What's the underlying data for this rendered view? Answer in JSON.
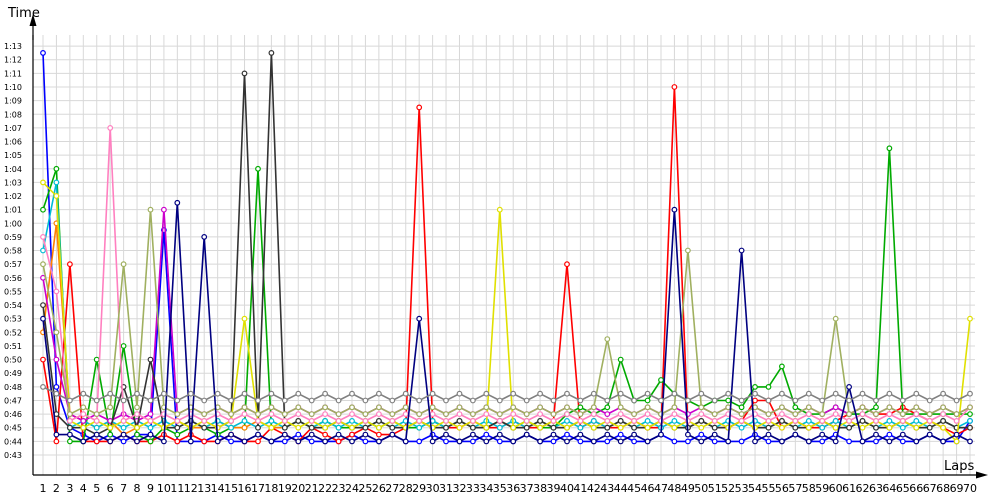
{
  "chart_data": {
    "type": "line",
    "ylabel": "Time",
    "xlabel": "Laps",
    "y_ticks": [
      "0:43",
      "0:44",
      "0:45",
      "0:46",
      "0:47",
      "0:48",
      "0:49",
      "0:50",
      "0:51",
      "0:52",
      "0:53",
      "0:54",
      "0:55",
      "0:56",
      "0:57",
      "0:58",
      "0:59",
      "1:00",
      "1:01",
      "1:02",
      "1:03",
      "1:04",
      "1:05",
      "1:06",
      "1:07",
      "1:08",
      "1:09",
      "1:10",
      "1:11",
      "1:12",
      "1:13"
    ],
    "y_tick_seconds": [
      43,
      44,
      45,
      46,
      47,
      48,
      49,
      50,
      51,
      52,
      53,
      54,
      55,
      56,
      57,
      58,
      59,
      60,
      61,
      62,
      63,
      64,
      65,
      66,
      67,
      68,
      69,
      70,
      71,
      72,
      73
    ],
    "x_ticks": [
      "1",
      "2",
      "3",
      "4",
      "5",
      "6",
      "7",
      "8",
      "9",
      "10",
      "11",
      "12",
      "13",
      "14",
      "15",
      "16",
      "17",
      "18",
      "19",
      "20",
      "21",
      "22",
      "23",
      "24",
      "25",
      "26",
      "27",
      "28",
      "29",
      "30",
      "31",
      "32",
      "33",
      "34",
      "35",
      "36",
      "37",
      "38",
      "39",
      "40",
      "41",
      "42",
      "43",
      "44",
      "45",
      "46",
      "47",
      "48",
      "49",
      "50",
      "51",
      "52",
      "53",
      "54",
      "55",
      "56",
      "57",
      "58",
      "59",
      "60",
      "61",
      "62",
      "63",
      "64",
      "65",
      "66",
      "67",
      "68",
      "69",
      "70"
    ],
    "xlim": [
      1,
      70
    ],
    "ylim": [
      42.5,
      75
    ],
    "grid": true,
    "legend": "none",
    "series": [
      {
        "color": "#0000ff",
        "values": [
          72.5,
          48.0,
          45.0,
          44.5,
          44.0,
          44.5,
          44.0,
          44.5,
          44.5,
          59.5,
          44.0,
          44.0,
          44.0,
          44.5,
          44.0,
          44.0,
          44.5,
          44.0,
          44.0,
          44.5,
          44.0,
          44.0,
          44.0,
          44.5,
          44.0,
          44.0,
          44.5,
          44.0,
          44.0,
          44.5,
          44.0,
          44.0,
          44.0,
          44.5,
          44.0,
          44.0,
          44.5,
          44.0,
          44.0,
          44.5,
          44.0,
          44.0,
          44.0,
          44.5,
          44.0,
          44.0,
          44.5,
          44.0,
          44.0,
          44.5,
          44.0,
          44.0,
          44.0,
          44.5,
          44.0,
          44.0,
          44.5,
          44.0,
          44.0,
          44.5,
          44.0,
          44.0,
          44.0,
          44.5,
          44.0,
          44.0,
          44.5,
          44.0,
          44.0,
          45.5
        ]
      },
      {
        "color": "#ff0000",
        "values": [
          50.0,
          44.0,
          57.0,
          44.0,
          44.0,
          44.0,
          44.5,
          44.0,
          44.0,
          44.5,
          44.0,
          44.5,
          44.0,
          44.0,
          44.5,
          44.0,
          44.0,
          45.0,
          44.5,
          44.0,
          45.0,
          44.5,
          44.0,
          44.5,
          45.0,
          44.5,
          44.5,
          45.0,
          68.5,
          45.5,
          45.0,
          45.0,
          45.5,
          45.0,
          45.0,
          45.5,
          45.0,
          45.0,
          45.5,
          57.0,
          45.0,
          45.5,
          45.0,
          45.0,
          45.5,
          45.0,
          45.0,
          70.0,
          45.0,
          45.5,
          45.0,
          45.0,
          45.5,
          47.0,
          47.0,
          45.0,
          45.5,
          45.0,
          45.0,
          45.5,
          46.0,
          46.5,
          46.0,
          46.0,
          46.5,
          46.0,
          45.5,
          45.0,
          44.5,
          45.0
        ]
      },
      {
        "color": "#00aa00",
        "values": [
          61.0,
          64.0,
          44.0,
          44.0,
          50.0,
          44.5,
          51.0,
          44.5,
          44.0,
          45.0,
          44.5,
          45.0,
          45.0,
          44.5,
          45.0,
          45.0,
          64.0,
          45.0,
          45.0,
          45.5,
          45.0,
          45.5,
          45.0,
          45.0,
          45.5,
          45.0,
          45.5,
          45.0,
          45.0,
          45.5,
          45.0,
          45.5,
          45.0,
          45.0,
          45.5,
          45.0,
          45.5,
          45.0,
          45.0,
          46.0,
          46.5,
          46.0,
          46.5,
          50.0,
          47.0,
          47.0,
          48.5,
          47.5,
          47.0,
          46.5,
          47.0,
          47.0,
          46.5,
          48.0,
          48.0,
          49.5,
          46.5,
          46.0,
          46.0,
          46.5,
          46.0,
          46.0,
          46.5,
          65.5,
          46.0,
          46.0,
          46.0,
          46.0,
          46.0,
          46.0
        ]
      },
      {
        "color": "#ff8000",
        "values": [
          52.0,
          60.0,
          46.0,
          45.5,
          45.0,
          45.5,
          44.5,
          45.0,
          45.5,
          45.0,
          45.5,
          45.0,
          45.0,
          45.5,
          45.0,
          45.0,
          45.5,
          45.0,
          45.0,
          45.5,
          45.0,
          45.0,
          45.5,
          45.0,
          45.0,
          45.5,
          45.0,
          45.0,
          45.5,
          45.0,
          45.0,
          45.5,
          45.0,
          45.0,
          45.5,
          45.0,
          45.0,
          45.5,
          45.0,
          45.0,
          45.5,
          45.0,
          45.0,
          45.5,
          45.0,
          45.0,
          45.5,
          45.0,
          45.0,
          45.5,
          45.0,
          45.0,
          45.5,
          45.0,
          45.0,
          45.5,
          45.0,
          45.0,
          45.5,
          45.0,
          45.0,
          45.5,
          45.0,
          45.0,
          45.5,
          45.0,
          45.0,
          45.5,
          45.0,
          45.0
        ]
      },
      {
        "color": "#00bcd4",
        "values": [
          58.0,
          63.0,
          45.0,
          45.5,
          45.0,
          45.5,
          45.0,
          45.5,
          45.0,
          45.5,
          45.0,
          45.5,
          45.0,
          45.5,
          45.0,
          45.5,
          45.0,
          45.5,
          45.0,
          45.5,
          45.0,
          45.5,
          45.0,
          45.5,
          45.0,
          45.5,
          45.0,
          45.5,
          45.0,
          45.5,
          45.0,
          45.5,
          45.0,
          45.5,
          45.0,
          45.5,
          45.0,
          45.5,
          45.0,
          45.5,
          45.0,
          45.5,
          45.0,
          45.5,
          45.0,
          45.5,
          45.0,
          45.5,
          45.0,
          45.5,
          45.0,
          45.5,
          45.0,
          45.5,
          45.0,
          45.5,
          45.0,
          45.5,
          45.0,
          45.5,
          45.0,
          45.5,
          45.0,
          45.5,
          45.0,
          45.5,
          45.0,
          45.5,
          45.0,
          45.5
        ]
      },
      {
        "color": "#cc00cc",
        "values": [
          56.0,
          50.0,
          46.0,
          45.5,
          46.0,
          45.5,
          46.0,
          45.5,
          46.0,
          61.0,
          46.0,
          46.5,
          46.0,
          46.5,
          46.0,
          46.5,
          46.0,
          46.5,
          46.0,
          46.5,
          46.0,
          46.5,
          46.0,
          46.5,
          46.0,
          46.5,
          46.0,
          46.5,
          46.0,
          46.5,
          46.0,
          46.5,
          46.0,
          46.5,
          46.0,
          46.5,
          46.0,
          46.5,
          46.0,
          46.5,
          46.0,
          46.5,
          46.0,
          46.5,
          46.0,
          46.5,
          46.0,
          46.5,
          46.0,
          46.5,
          46.0,
          46.5,
          46.0,
          46.5,
          46.0,
          46.5,
          46.0,
          46.5,
          46.0,
          46.5,
          46.0,
          46.5,
          46.0,
          46.5,
          46.0,
          46.5,
          46.0,
          46.5,
          46.0,
          46.5
        ]
      },
      {
        "color": "#333333",
        "values": [
          54.0,
          46.0,
          45.0,
          45.0,
          44.5,
          45.0,
          48.0,
          45.0,
          50.0,
          45.0,
          45.0,
          45.5,
          45.0,
          45.0,
          45.5,
          71.0,
          45.0,
          72.5,
          45.0,
          45.5,
          45.0,
          45.0,
          45.5,
          45.0,
          45.0,
          45.5,
          45.0,
          45.0,
          45.5,
          45.0,
          45.0,
          45.5,
          45.0,
          45.0,
          45.5,
          45.0,
          45.0,
          45.5,
          45.0,
          45.0,
          45.5,
          45.0,
          45.0,
          45.5,
          45.0,
          45.0,
          45.5,
          45.0,
          45.0,
          45.5,
          45.0,
          45.0,
          45.5,
          45.0,
          45.0,
          45.5,
          45.0,
          45.0,
          45.5,
          45.0,
          45.0,
          45.5,
          45.0,
          45.0,
          45.5,
          45.0,
          45.0,
          45.5,
          45.0,
          45.0
        ]
      },
      {
        "color": "#e0e000",
        "values": [
          63.0,
          62.0,
          45.5,
          45.0,
          45.5,
          45.0,
          45.5,
          45.0,
          45.5,
          45.0,
          45.5,
          45.0,
          45.5,
          45.0,
          45.5,
          53.0,
          45.5,
          45.0,
          45.5,
          45.0,
          45.5,
          45.0,
          45.5,
          45.0,
          45.5,
          45.0,
          45.5,
          45.0,
          45.5,
          45.0,
          45.5,
          45.0,
          45.5,
          45.0,
          61.0,
          45.0,
          45.5,
          45.0,
          45.5,
          45.0,
          45.5,
          45.0,
          45.5,
          45.0,
          45.5,
          45.0,
          45.5,
          45.0,
          45.5,
          45.0,
          45.5,
          45.0,
          45.5,
          45.0,
          45.5,
          45.0,
          45.5,
          45.0,
          45.5,
          45.0,
          45.5,
          45.0,
          45.5,
          45.0,
          45.5,
          45.0,
          45.5,
          45.0,
          44.0,
          53.0
        ]
      },
      {
        "color": "#ff80c0",
        "values": [
          59.0,
          55.0,
          45.5,
          46.0,
          45.5,
          67.0,
          45.5,
          46.0,
          45.5,
          46.0,
          45.5,
          46.0,
          45.5,
          46.0,
          45.5,
          46.0,
          45.5,
          46.0,
          45.5,
          46.0,
          45.5,
          46.0,
          45.5,
          46.0,
          45.5,
          46.0,
          45.5,
          46.0,
          45.5,
          46.0,
          45.5,
          46.0,
          45.5,
          46.0,
          45.5,
          46.0,
          45.5,
          46.0,
          45.5,
          46.0,
          45.5,
          46.0,
          45.5,
          46.0,
          45.5,
          46.0,
          45.5,
          46.0,
          45.5,
          46.0,
          45.5,
          46.0,
          45.5,
          46.0,
          45.5,
          46.0,
          45.5,
          46.0,
          45.5,
          46.0,
          45.5,
          46.0,
          45.5,
          46.0,
          45.5,
          46.0,
          45.5,
          46.0,
          45.5,
          46.5
        ]
      },
      {
        "color": "#a0b060",
        "values": [
          57.0,
          52.0,
          46.0,
          46.5,
          46.0,
          46.5,
          57.0,
          46.5,
          61.0,
          46.5,
          46.0,
          46.5,
          46.0,
          46.5,
          46.0,
          46.5,
          46.0,
          46.5,
          46.0,
          46.5,
          46.0,
          46.5,
          46.0,
          46.5,
          46.0,
          46.5,
          46.0,
          46.5,
          46.0,
          46.5,
          46.0,
          46.5,
          46.0,
          46.5,
          46.0,
          46.5,
          46.0,
          46.5,
          46.0,
          46.5,
          46.0,
          46.5,
          51.5,
          46.5,
          46.0,
          46.5,
          46.0,
          46.5,
          58.0,
          46.5,
          46.0,
          46.5,
          46.0,
          46.5,
          46.0,
          46.5,
          46.0,
          46.5,
          46.0,
          53.0,
          46.0,
          46.5,
          46.0,
          46.5,
          46.0,
          46.5,
          46.0,
          46.5,
          46.0,
          46.5
        ]
      },
      {
        "color": "#000080",
        "values": [
          53.0,
          44.5,
          44.5,
          44.0,
          44.5,
          44.0,
          44.5,
          44.0,
          44.5,
          44.0,
          61.5,
          44.0,
          59.0,
          44.0,
          44.5,
          44.0,
          44.5,
          44.0,
          44.5,
          44.0,
          44.5,
          44.0,
          44.5,
          44.0,
          44.5,
          44.0,
          44.5,
          44.0,
          53.0,
          44.0,
          44.5,
          44.0,
          44.5,
          44.0,
          44.5,
          44.0,
          44.5,
          44.0,
          44.5,
          44.0,
          44.5,
          44.0,
          44.5,
          44.0,
          44.5,
          44.0,
          44.5,
          61.0,
          44.5,
          44.0,
          44.5,
          44.0,
          58.0,
          44.0,
          44.5,
          44.0,
          44.5,
          44.0,
          44.5,
          44.0,
          48.0,
          44.0,
          44.5,
          44.0,
          44.5,
          44.0,
          44.5,
          44.0,
          44.5,
          44.0
        ]
      },
      {
        "color": "#808080",
        "values": [
          48.0,
          47.5,
          47.0,
          47.5,
          47.0,
          47.5,
          47.0,
          47.5,
          47.0,
          47.5,
          47.0,
          47.5,
          47.0,
          47.5,
          47.0,
          47.5,
          47.0,
          47.5,
          47.0,
          47.5,
          47.0,
          47.5,
          47.0,
          47.5,
          47.0,
          47.5,
          47.0,
          47.5,
          47.0,
          47.5,
          47.0,
          47.5,
          47.0,
          47.5,
          47.0,
          47.5,
          47.0,
          47.5,
          47.0,
          47.5,
          47.0,
          47.5,
          47.0,
          47.5,
          47.0,
          47.5,
          47.0,
          47.5,
          47.0,
          47.5,
          47.0,
          47.5,
          47.0,
          47.5,
          47.0,
          47.5,
          47.0,
          47.5,
          47.0,
          47.5,
          47.0,
          47.5,
          47.0,
          47.5,
          47.0,
          47.5,
          47.0,
          47.5,
          47.0,
          47.5
        ]
      }
    ]
  }
}
